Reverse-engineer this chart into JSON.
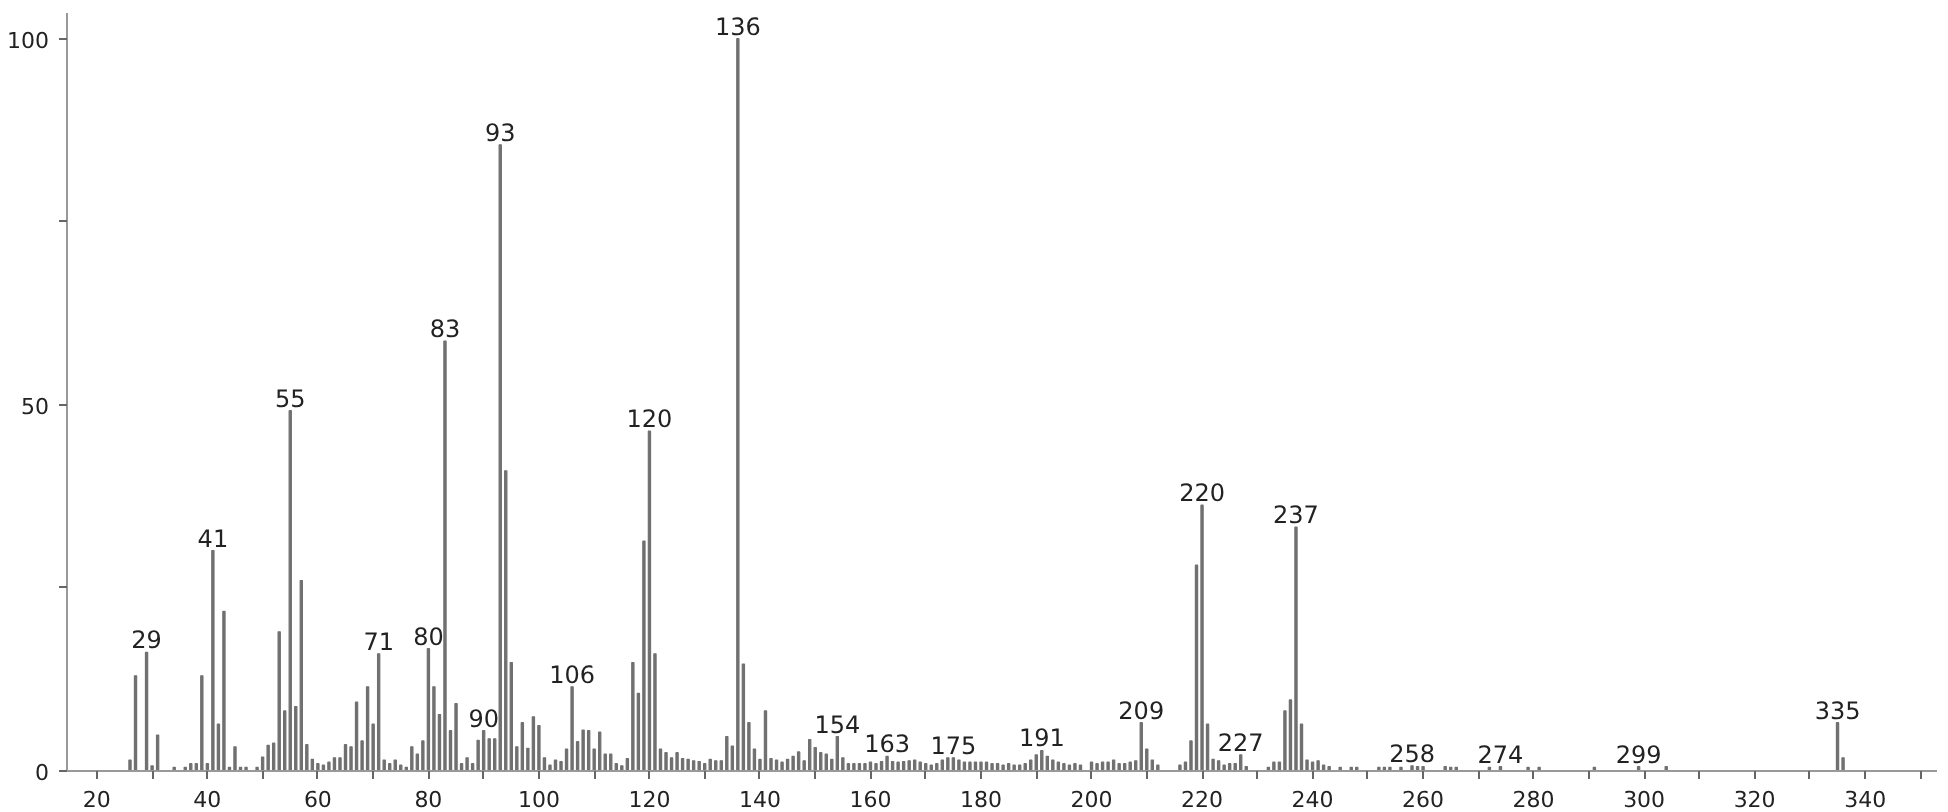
{
  "chart_data": {
    "type": "bar",
    "color": "#707070",
    "x": [
      26,
      27,
      29,
      30,
      31,
      34,
      36,
      37,
      38,
      39,
      40,
      41,
      42,
      43,
      44,
      45,
      46,
      47,
      49,
      50,
      51,
      52,
      53,
      54,
      55,
      56,
      57,
      58,
      59,
      60,
      61,
      62,
      63,
      64,
      65,
      66,
      67,
      68,
      69,
      70,
      71,
      72,
      73,
      74,
      75,
      76,
      77,
      78,
      79,
      80,
      81,
      82,
      83,
      84,
      85,
      86,
      87,
      88,
      89,
      90,
      91,
      92,
      93,
      94,
      95,
      96,
      97,
      98,
      99,
      100,
      101,
      102,
      103,
      104,
      105,
      106,
      107,
      108,
      109,
      110,
      111,
      112,
      113,
      114,
      115,
      116,
      117,
      118,
      119,
      120,
      121,
      122,
      123,
      124,
      125,
      126,
      127,
      128,
      129,
      130,
      131,
      132,
      133,
      134,
      135,
      136,
      137,
      138,
      139,
      140,
      141,
      142,
      143,
      144,
      145,
      146,
      147,
      148,
      149,
      150,
      151,
      152,
      153,
      154,
      155,
      156,
      157,
      158,
      159,
      160,
      161,
      162,
      163,
      164,
      165,
      166,
      167,
      168,
      169,
      170,
      171,
      172,
      173,
      174,
      175,
      176,
      177,
      178,
      179,
      180,
      181,
      182,
      183,
      184,
      185,
      186,
      187,
      188,
      189,
      190,
      191,
      192,
      193,
      194,
      195,
      196,
      197,
      198,
      200,
      201,
      202,
      203,
      204,
      205,
      206,
      207,
      208,
      209,
      210,
      211,
      212,
      216,
      217,
      218,
      219,
      220,
      221,
      222,
      223,
      224,
      225,
      226,
      227,
      228,
      232,
      233,
      234,
      235,
      236,
      237,
      238,
      239,
      240,
      241,
      242,
      243,
      245,
      247,
      248,
      252,
      253,
      254,
      256,
      258,
      259,
      260,
      264,
      265,
      266,
      272,
      274,
      279,
      281,
      291,
      299,
      304,
      335,
      336
    ],
    "values": [
      1.5,
      13,
      16.2,
      0.7,
      4.9,
      0.5,
      0.5,
      1,
      1,
      13,
      1,
      30.1,
      6.4,
      21.8,
      0.5,
      3.3,
      0.5,
      0.5,
      0.5,
      1.9,
      3.5,
      3.8,
      19,
      8.2,
      49.2,
      8.8,
      26,
      3.6,
      1.6,
      1,
      0.8,
      1.2,
      1.8,
      1.8,
      3.6,
      3.3,
      9.4,
      4.1,
      11.5,
      6.4,
      16,
      1.5,
      1,
      1.5,
      0.8,
      0.5,
      3.3,
      2.3,
      4.1,
      16.7,
      11.5,
      7.7,
      58.7,
      5.5,
      9.2,
      1,
      1.8,
      1,
      4.2,
      5.5,
      4.4,
      4.4,
      85.5,
      41,
      14.8,
      3.3,
      6.6,
      3.1,
      7.4,
      6.2,
      1.8,
      0.8,
      1.5,
      1.3,
      3,
      11.5,
      4,
      5.6,
      5.5,
      3,
      5.3,
      2.3,
      2.3,
      1,
      0.7,
      1.7,
      14.8,
      10.6,
      31.4,
      46.4,
      16,
      3,
      2.5,
      1.8,
      2.5,
      1.7,
      1.6,
      1.4,
      1.3,
      1,
      1.6,
      1.4,
      1.4,
      4.7,
      3.4,
      100,
      14.6,
      6.6,
      3,
      1.6,
      8.2,
      1.7,
      1.5,
      1.2,
      1.6,
      2,
      2.6,
      1.4,
      4.3,
      3.2,
      2.5,
      2.3,
      1.6,
      4.7,
      1.8,
      1,
      1,
      1,
      1,
      1.2,
      1,
      1.3,
      2,
      1.3,
      1.2,
      1.3,
      1.4,
      1.5,
      1.2,
      1,
      0.8,
      1,
      1.5,
      1.8,
      1.8,
      1.5,
      1.2,
      1.2,
      1.2,
      1.2,
      1.2,
      1,
      1,
      0.8,
      1,
      0.8,
      0.8,
      1,
      1.5,
      2.2,
      2.8,
      2,
      1.5,
      1.2,
      1,
      0.8,
      1,
      0.8,
      1.2,
      1,
      1.2,
      1.2,
      1.5,
      1,
      1,
      1.2,
      1.4,
      6.6,
      3,
      1.5,
      0.8,
      0.8,
      1.2,
      4.1,
      28.1,
      36.3,
      6.4,
      1.6,
      1.4,
      0.8,
      1,
      1,
      2.2,
      0.6,
      0.5,
      1.2,
      1.2,
      8.2,
      9.7,
      33.3,
      6.4,
      1.5,
      1.2,
      1.4,
      0.8,
      0.6,
      0.5,
      0.5,
      0.5,
      0.5,
      0.5,
      0.5,
      0.5,
      0.7,
      0.6,
      0.6,
      0.6,
      0.5,
      0.5,
      0.5,
      0.6,
      0.5,
      0.5,
      0.5,
      0.6,
      0.6,
      6.6,
      1.8
    ],
    "xlim": [
      14.6,
      353
    ],
    "xticks": [
      20,
      {
        "value": 30,
        "label": null
      },
      40,
      {
        "value": 50,
        "label": null
      },
      60,
      {
        "value": 70,
        "label": null
      },
      80,
      {
        "value": 90,
        "label": null
      },
      100,
      {
        "value": 110,
        "label": null
      },
      120,
      {
        "value": 130,
        "label": null
      },
      140,
      {
        "value": 150,
        "label": null
      },
      160,
      {
        "value": 170,
        "label": null
      },
      180,
      {
        "value": 190,
        "label": null
      },
      200,
      {
        "value": 210,
        "label": null
      },
      220,
      {
        "value": 230,
        "label": null
      },
      240,
      {
        "value": 250,
        "label": null
      },
      260,
      {
        "value": 270,
        "label": null
      },
      280,
      {
        "value": 290,
        "label": null
      },
      300,
      {
        "value": 310,
        "label": null
      },
      320,
      {
        "value": 330,
        "label": null
      },
      340,
      {
        "value": 350,
        "label": null
      }
    ],
    "ylim": [
      0,
      103.5
    ],
    "yticks": [
      0,
      {
        "value": 25,
        "label": null
      },
      50,
      {
        "value": 75,
        "label": null
      },
      100
    ],
    "grid": false,
    "annotations": [
      {
        "text": "29",
        "x": 29,
        "y": 16.2
      },
      {
        "text": "41",
        "x": 41,
        "y": 30.1
      },
      {
        "text": "55",
        "x": 55,
        "y": 49.2
      },
      {
        "text": "71",
        "x": 71,
        "y": 16
      },
      {
        "text": "80",
        "x": 80,
        "y": 16.7
      },
      {
        "text": "83",
        "x": 83,
        "y": 58.7
      },
      {
        "text": "90",
        "x": 90,
        "y": 5.5
      },
      {
        "text": "93",
        "x": 93,
        "y": 85.5
      },
      {
        "text": "106",
        "x": 106,
        "y": 11.5
      },
      {
        "text": "120",
        "x": 120,
        "y": 46.4
      },
      {
        "text": "136",
        "x": 136,
        "y": 100
      },
      {
        "text": "154",
        "x": 154,
        "y": 4.7
      },
      {
        "text": "163",
        "x": 163,
        "y": 2
      },
      {
        "text": "175",
        "x": 175,
        "y": 1.8
      },
      {
        "text": "191",
        "x": 191,
        "y": 2.8
      },
      {
        "text": "209",
        "x": 209,
        "y": 6.6
      },
      {
        "text": "220",
        "x": 220,
        "y": 36.3
      },
      {
        "text": "227",
        "x": 227,
        "y": 2.2
      },
      {
        "text": "237",
        "x": 237,
        "y": 33.3
      },
      {
        "text": "258",
        "x": 258,
        "y": 0.7
      },
      {
        "text": "274",
        "x": 274,
        "y": 0.6
      },
      {
        "text": "299",
        "x": 299,
        "y": 0.6
      },
      {
        "text": "335",
        "x": 335,
        "y": 6.6
      }
    ]
  }
}
